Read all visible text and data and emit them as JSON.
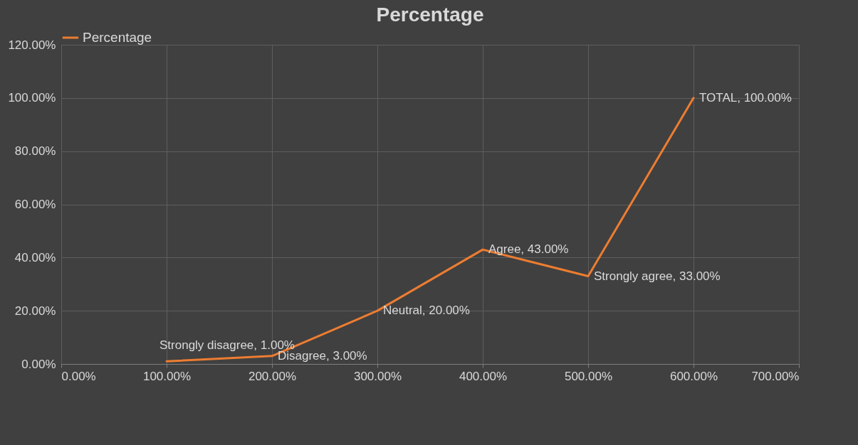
{
  "chart_data": {
    "type": "line",
    "title": "Percentage",
    "x": [
      100,
      200,
      300,
      400,
      500,
      600
    ],
    "series": [
      {
        "name": "Percentage",
        "color": "#ed7d31",
        "values": [
          1,
          3,
          20,
          43,
          33,
          100
        ],
        "value_labels": [
          "Strongly disagree, 1.00%",
          "Disagree, 3.00%",
          "Neutral, 20.00%",
          "Agree, 43.00%",
          "Strongly agree, 33.00%",
          "TOTAL, 100.00%"
        ]
      }
    ],
    "xlim": [
      0,
      700
    ],
    "xticks": [
      {
        "value": 0,
        "label": "0.00%"
      },
      {
        "value": 100,
        "label": "100.00%"
      },
      {
        "value": 200,
        "label": "200.00%"
      },
      {
        "value": 300,
        "label": "300.00%"
      },
      {
        "value": 400,
        "label": "400.00%"
      },
      {
        "value": 500,
        "label": "500.00%"
      },
      {
        "value": 600,
        "label": "600.00%"
      },
      {
        "value": 700,
        "label": "700.00%"
      }
    ],
    "ylim": [
      0,
      120
    ],
    "yticks": [
      {
        "value": 0,
        "label": "0.00%"
      },
      {
        "value": 20,
        "label": "20.00%"
      },
      {
        "value": 40,
        "label": "40.00%"
      },
      {
        "value": 60,
        "label": "60.00%"
      },
      {
        "value": 80,
        "label": "80.00%"
      },
      {
        "value": 100,
        "label": "100.00%"
      },
      {
        "value": 120,
        "label": "120.00%"
      }
    ],
    "grid": true,
    "legend": "top",
    "marker": "none",
    "line_style": "solid"
  }
}
